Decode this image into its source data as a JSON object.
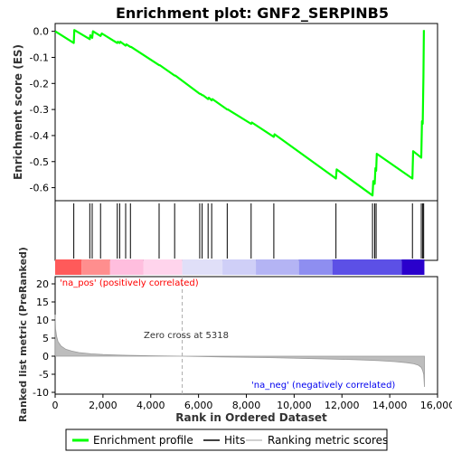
{
  "chart_data": {
    "type": "line",
    "title": "Enrichment plot: GNF2_SERPINB5",
    "xlabel": "Rank in Ordered Dataset",
    "es_panel": {
      "ylabel": "Enrichment score (ES)",
      "yticks": [
        "0.0",
        "-0.1",
        "-0.2",
        "-0.3",
        "-0.4",
        "-0.5",
        "-0.6"
      ],
      "ytick_values": [
        0.0,
        -0.1,
        -0.2,
        -0.3,
        -0.4,
        -0.5,
        -0.6
      ],
      "ylim": [
        -0.65,
        0.03
      ],
      "line_color": "#00ff00",
      "series": [
        {
          "x": [
            0,
            780,
            800,
            1450,
            1470,
            1550,
            1580,
            1900,
            1950,
            2600,
            2630,
            2700,
            2730,
            2950,
            2980,
            3150,
            3180,
            4350,
            4380,
            5000,
            5030,
            6050,
            6080,
            6150,
            6180,
            6400,
            6430,
            6550,
            6580,
            7200,
            7230,
            8200,
            8230,
            9150,
            9180,
            11750,
            11780,
            13280,
            13310,
            13370,
            13400,
            13430,
            13460,
            14950,
            14980,
            15320,
            15350,
            15380,
            15410,
            15430
          ],
          "y": [
            0.0,
            -0.045,
            0.005,
            -0.03,
            -0.015,
            -0.025,
            0.0,
            -0.018,
            -0.008,
            -0.045,
            -0.04,
            -0.045,
            -0.04,
            -0.055,
            -0.05,
            -0.06,
            -0.06,
            -0.13,
            -0.13,
            -0.17,
            -0.17,
            -0.24,
            -0.24,
            -0.245,
            -0.245,
            -0.26,
            -0.255,
            -0.265,
            -0.26,
            -0.3,
            -0.3,
            -0.355,
            -0.35,
            -0.405,
            -0.395,
            -0.565,
            -0.53,
            -0.63,
            -0.575,
            -0.585,
            -0.525,
            -0.535,
            -0.47,
            -0.565,
            -0.46,
            -0.485,
            -0.345,
            -0.355,
            -0.175,
            0.005
          ]
        }
      ]
    },
    "hits": [
      780,
      1450,
      1550,
      1900,
      2600,
      2700,
      2950,
      3150,
      4350,
      5000,
      6050,
      6150,
      6400,
      6550,
      7200,
      8200,
      9150,
      11750,
      13280,
      13370,
      13430,
      14950,
      15320,
      15380,
      15420
    ],
    "color_bar": {
      "segments": [
        {
          "from": 0,
          "to": 1100,
          "color": "#ff5a5a"
        },
        {
          "from": 1100,
          "to": 2300,
          "color": "#ff8e8e"
        },
        {
          "from": 2300,
          "to": 3700,
          "color": "#ffbede"
        },
        {
          "from": 3700,
          "to": 5318,
          "color": "#ffd4ec"
        },
        {
          "from": 5318,
          "to": 7000,
          "color": "#e0dff8"
        },
        {
          "from": 7000,
          "to": 8400,
          "color": "#cfcff7"
        },
        {
          "from": 8400,
          "to": 10200,
          "color": "#b4b4f4"
        },
        {
          "from": 10200,
          "to": 11600,
          "color": "#8e8ef0"
        },
        {
          "from": 11600,
          "to": 14500,
          "color": "#5c50e6"
        },
        {
          "from": 14500,
          "to": 15450,
          "color": "#2a00cc"
        }
      ]
    },
    "metric_panel": {
      "ylabel": "Ranked list metric (PreRanked)",
      "yticks": [
        "20",
        "15",
        "10",
        "5",
        "0",
        "-5",
        "-10"
      ],
      "ytick_values": [
        20,
        15,
        10,
        5,
        0,
        -5,
        -10
      ],
      "ylim": [
        -10.5,
        22
      ],
      "pos_label": "'na_pos' (positively correlated)",
      "neg_label": "'na_neg' (negatively correlated)",
      "zero_cross_label": "Zero cross at 5318",
      "zero_cross": 5318,
      "profile": {
        "x": [
          0,
          20,
          60,
          120,
          250,
          450,
          700,
          1000,
          1500,
          2000,
          3000,
          4000,
          5318,
          7000,
          9000,
          11000,
          12500,
          13500,
          14200,
          14700,
          15000,
          15200,
          15320,
          15380,
          15420,
          15450
        ],
        "y": [
          11.5,
          7.5,
          5.5,
          4.0,
          2.8,
          1.9,
          1.4,
          1.0,
          0.65,
          0.45,
          0.25,
          0.12,
          0.0,
          -0.2,
          -0.4,
          -0.7,
          -0.95,
          -1.2,
          -1.5,
          -1.8,
          -2.1,
          -2.5,
          -3.1,
          -4.0,
          -5.0,
          -8.5
        ]
      }
    },
    "xticks": [
      "0",
      "2,000",
      "4,000",
      "6,000",
      "8,000",
      "10,000",
      "12,000",
      "14,000",
      "16,000"
    ],
    "xtick_values": [
      0,
      2000,
      4000,
      6000,
      8000,
      10000,
      12000,
      14000,
      16000
    ],
    "xlim": [
      0,
      16000
    ],
    "legend": {
      "position": "bottom",
      "items": [
        {
          "label": "Enrichment profile",
          "color": "#00ff00"
        },
        {
          "label": "Hits",
          "color": "#000000"
        },
        {
          "label": "Ranking metric scores",
          "color": "#c0c0c0"
        }
      ]
    }
  }
}
